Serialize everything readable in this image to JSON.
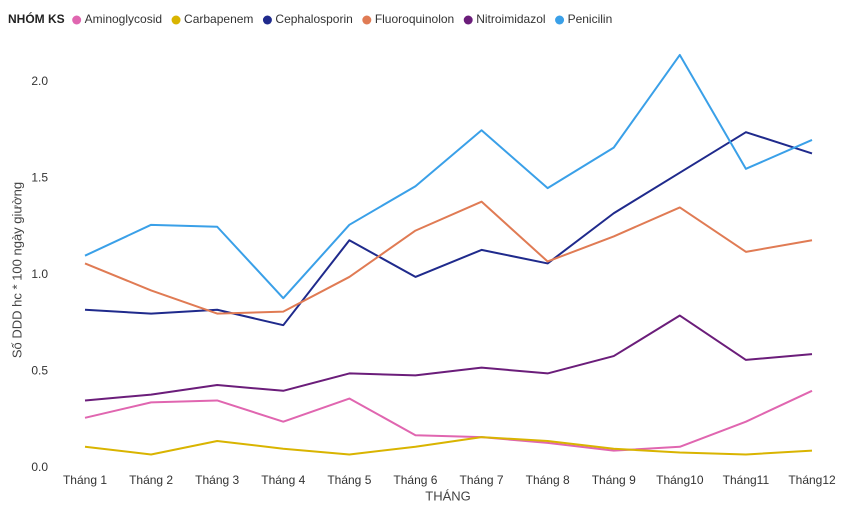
{
  "chart_data": {
    "type": "line",
    "legend_title": "NHÓM KS",
    "legend": "top-left",
    "x_label": "THÁNG",
    "y_label": "Số DDD hc * 100 ngày giường",
    "categories": [
      "Tháng 1",
      "Tháng 2",
      "Tháng 3",
      "Tháng 4",
      "Tháng 5",
      "Tháng 6",
      "Tháng 7",
      "Tháng 8",
      "Tháng 9",
      "Tháng10",
      "Tháng11",
      "Tháng12"
    ],
    "ylim": [
      0,
      2.2
    ],
    "yticks": [
      {
        "value": 0,
        "label": "0.0"
      },
      {
        "value": 0.5,
        "label": "0.5"
      },
      {
        "value": 1,
        "label": "1.0"
      },
      {
        "value": 1.5,
        "label": "1.5"
      },
      {
        "value": 2,
        "label": "2.0"
      }
    ],
    "grid": false,
    "series": [
      {
        "name": "Aminoglycosid",
        "color": "#e066b0",
        "values": [
          0.26,
          0.34,
          0.35,
          0.24,
          0.36,
          0.17,
          0.16,
          0.13,
          0.09,
          0.11,
          0.24,
          0.4
        ]
      },
      {
        "name": "Carbapenem",
        "color": "#d9b400",
        "values": [
          0.11,
          0.07,
          0.14,
          0.1,
          0.07,
          0.11,
          0.16,
          0.14,
          0.1,
          0.08,
          0.07,
          0.09
        ]
      },
      {
        "name": "Cephalosporin",
        "color": "#1f2a8c",
        "values": [
          0.82,
          0.8,
          0.82,
          0.74,
          1.18,
          0.99,
          1.13,
          1.06,
          1.32,
          1.53,
          1.74,
          1.63
        ]
      },
      {
        "name": "Fluoroquinolon",
        "color": "#e07b54",
        "values": [
          1.06,
          0.92,
          0.8,
          0.81,
          0.99,
          1.23,
          1.38,
          1.07,
          1.2,
          1.35,
          1.12,
          1.18
        ]
      },
      {
        "name": "Nitroimidazol",
        "color": "#6b1d7a",
        "values": [
          0.35,
          0.38,
          0.43,
          0.4,
          0.49,
          0.48,
          0.52,
          0.49,
          0.58,
          0.79,
          0.56,
          0.59
        ]
      },
      {
        "name": "Penicilin",
        "color": "#3aa0e8",
        "values": [
          1.1,
          1.26,
          1.25,
          0.88,
          1.26,
          1.46,
          1.75,
          1.45,
          1.66,
          2.14,
          1.55,
          1.7
        ]
      }
    ]
  }
}
